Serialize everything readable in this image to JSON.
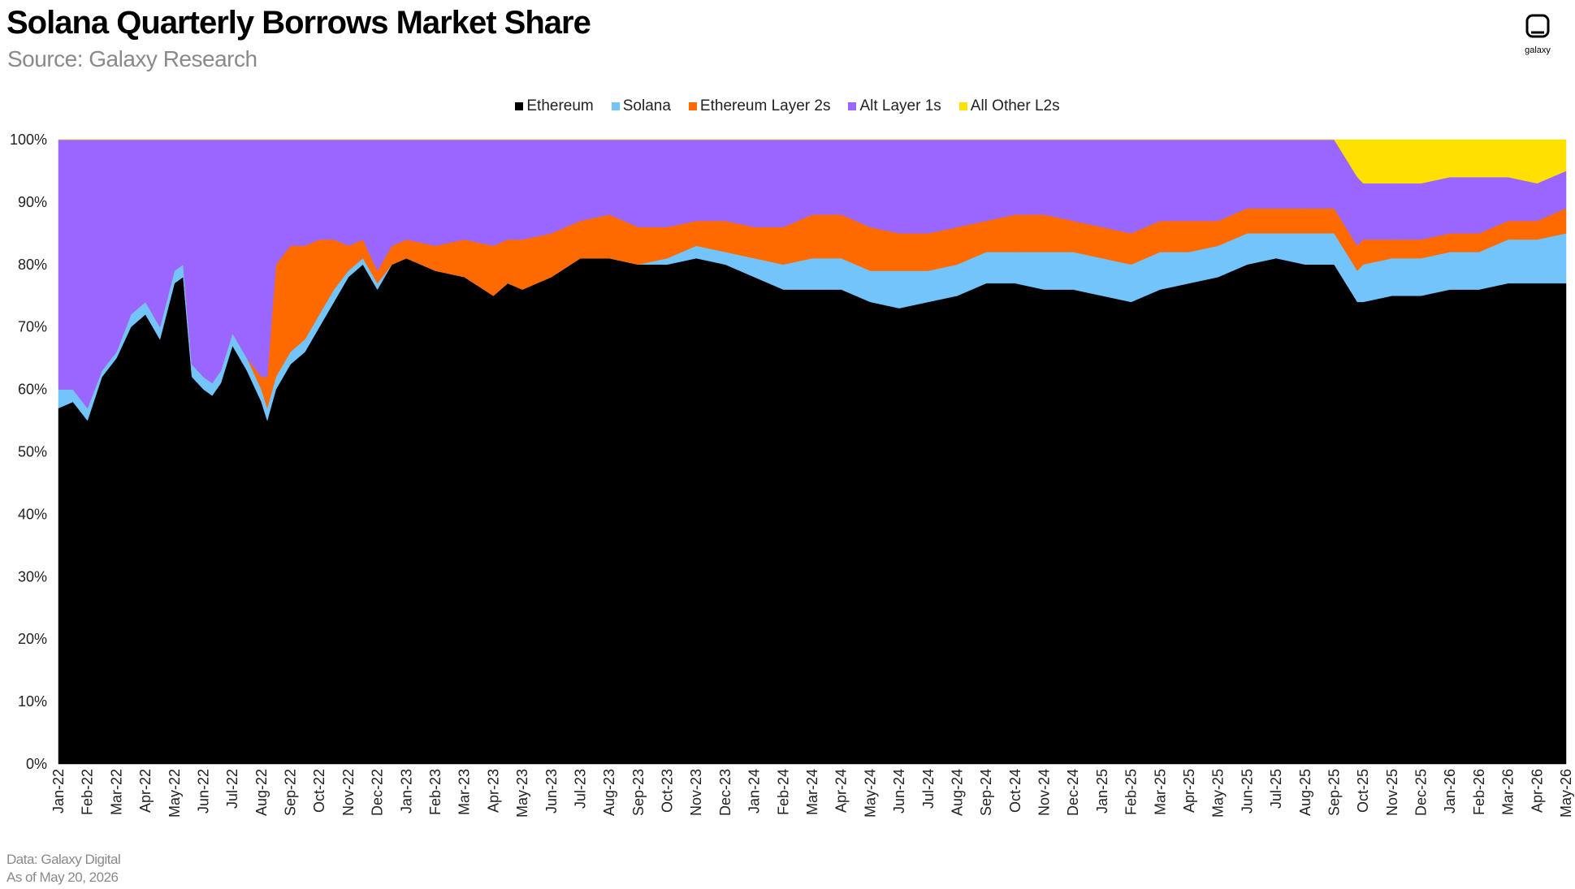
{
  "header": {
    "title": "Solana Quarterly Borrows Market Share",
    "subtitle": "Source: Galaxy Research",
    "logo_text": "galaxy"
  },
  "footer": {
    "data_note": "Data: Galaxy Digital",
    "as_of": "As of May 20, 2026"
  },
  "chart_data": {
    "type": "area",
    "stacked": true,
    "title": "Solana Quarterly Borrows Market Share",
    "xlabel": "",
    "ylabel": "",
    "ylim": [
      0,
      100
    ],
    "y_ticks": [
      "0%",
      "10%",
      "20%",
      "30%",
      "40%",
      "50%",
      "60%",
      "70%",
      "80%",
      "90%",
      "100%"
    ],
    "x_ticks": [
      "Jan-22",
      "Feb-22",
      "Mar-22",
      "Apr-22",
      "May-22",
      "Jun-22",
      "Jul-22",
      "Aug-22",
      "Sep-22",
      "Oct-22",
      "Nov-22",
      "Dec-22",
      "Jan-23",
      "Feb-23",
      "Mar-23",
      "Apr-23",
      "May-23",
      "Jun-23",
      "Jul-23",
      "Aug-23",
      "Sep-23",
      "Oct-23",
      "Nov-23",
      "Dec-23",
      "Jan-24",
      "Feb-24",
      "Mar-24",
      "Apr-24",
      "May-24",
      "Jun-24",
      "Jul-24",
      "Aug-24",
      "Sep-24",
      "Oct-24",
      "Nov-24",
      "Dec-24",
      "Jan-25",
      "Feb-25",
      "Mar-25",
      "Apr-25",
      "May-25",
      "Jun-25",
      "Jul-25",
      "Aug-25",
      "Sep-25",
      "Oct-25",
      "Nov-25",
      "Dec-25",
      "Jan-26",
      "Feb-26",
      "Mar-26",
      "Apr-26",
      "May-26"
    ],
    "legend_position": "top-center",
    "x": [
      0,
      0.5,
      1,
      1.5,
      2,
      2.5,
      3,
      3.5,
      4,
      4.3,
      4.6,
      5,
      5.3,
      5.6,
      6,
      6.5,
      7,
      7.2,
      7.5,
      8,
      8.5,
      9,
      9.5,
      10,
      10.5,
      11,
      11.5,
      12,
      13,
      14,
      15,
      15.5,
      16,
      17,
      18,
      19,
      20,
      21,
      22,
      23,
      24,
      25,
      26,
      27,
      28,
      29,
      30,
      31,
      32,
      33,
      34,
      35,
      36,
      37,
      38,
      39,
      40,
      41,
      42,
      43,
      44,
      44.8,
      45,
      46,
      47,
      48,
      49,
      50,
      51,
      52
    ],
    "series": [
      {
        "name": "Ethereum",
        "color": "#000000",
        "values": [
          57,
          58,
          55,
          62,
          65,
          70,
          72,
          68,
          77,
          78,
          62,
          60,
          59,
          61,
          67,
          63,
          58,
          55,
          60,
          64,
          66,
          70,
          74,
          78,
          80,
          76,
          80,
          81,
          79,
          78,
          75,
          77,
          76,
          78,
          81,
          81,
          80,
          80,
          81,
          80,
          78,
          76,
          76,
          76,
          74,
          73,
          74,
          75,
          77,
          77,
          76,
          76,
          75,
          74,
          76,
          77,
          78,
          80,
          81,
          80,
          80,
          74,
          74,
          75,
          75,
          76,
          76,
          77,
          77,
          77
        ]
      },
      {
        "name": "Solana",
        "color": "#74c4fc",
        "values": [
          3,
          2,
          2,
          1,
          1,
          2,
          2,
          2,
          2,
          2,
          2,
          2,
          2,
          2,
          2,
          2,
          2,
          2,
          2,
          2,
          2,
          2,
          2,
          1,
          1,
          1,
          0,
          0,
          0,
          0,
          0,
          0,
          0,
          0,
          0,
          0,
          0,
          1,
          2,
          2,
          3,
          4,
          5,
          5,
          5,
          6,
          5,
          5,
          5,
          5,
          6,
          6,
          6,
          6,
          6,
          5,
          5,
          5,
          4,
          5,
          5,
          5,
          6,
          6,
          6,
          6,
          6,
          7,
          7,
          8
        ]
      },
      {
        "name": "Ethereum Layer 2s",
        "color": "#ff6a00",
        "values": [
          0,
          0,
          0,
          0,
          0,
          0,
          0,
          0,
          0,
          0,
          0,
          0,
          0,
          0,
          0,
          0,
          2,
          5,
          18,
          17,
          15,
          12,
          8,
          4,
          3,
          2,
          3,
          3,
          4,
          6,
          8,
          7,
          8,
          7,
          6,
          7,
          6,
          5,
          4,
          5,
          5,
          6,
          7,
          7,
          7,
          6,
          6,
          6,
          5,
          6,
          6,
          5,
          5,
          5,
          5,
          5,
          4,
          4,
          4,
          4,
          4,
          4,
          4,
          3,
          3,
          3,
          3,
          3,
          3,
          4
        ]
      },
      {
        "name": "Alt Layer 1s",
        "color": "#9966ff",
        "values": [
          40,
          40,
          43,
          37,
          34,
          28,
          26,
          30,
          21,
          20,
          36,
          38,
          39,
          37,
          31,
          35,
          38,
          38,
          20,
          17,
          17,
          16,
          16,
          17,
          16,
          21,
          17,
          16,
          17,
          16,
          17,
          16,
          16,
          15,
          13,
          12,
          14,
          14,
          13,
          13,
          14,
          14,
          12,
          12,
          14,
          16,
          15,
          14,
          13,
          12,
          12,
          13,
          14,
          15,
          13,
          13,
          13,
          11,
          11,
          11,
          11,
          11,
          9,
          9,
          9,
          9,
          9,
          7,
          6,
          6
        ]
      },
      {
        "name": "All Other L2s",
        "color": "#ffe000",
        "values": [
          0,
          0,
          0,
          0,
          0,
          0,
          0,
          0,
          0,
          0,
          0,
          0,
          0,
          0,
          0,
          0,
          0,
          0,
          0,
          0,
          0,
          0,
          0,
          0,
          0,
          0,
          0,
          0,
          0,
          0,
          0,
          0,
          0,
          0,
          0,
          0,
          0,
          0,
          0,
          0,
          0,
          0,
          0,
          0,
          0,
          0,
          0,
          0,
          0,
          0,
          0,
          0,
          0,
          0,
          0,
          0,
          0,
          0,
          0,
          0,
          0,
          6,
          7,
          7,
          7,
          6,
          6,
          7,
          7,
          5
        ]
      }
    ]
  }
}
